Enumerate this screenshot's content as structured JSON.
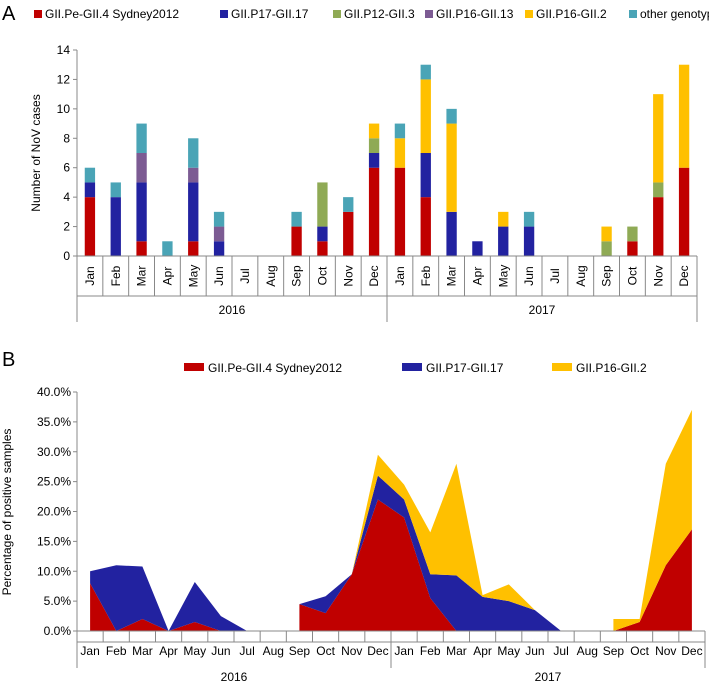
{
  "chart_data": [
    {
      "panel": "A",
      "type": "bar",
      "stacked": true,
      "ylabel": "Number of NoV cases",
      "ylim": [
        0,
        14
      ],
      "yticks": [
        0,
        2,
        4,
        6,
        8,
        10,
        12,
        14
      ],
      "categories": [
        "Jan",
        "Feb",
        "Mar",
        "Apr",
        "May",
        "Jun",
        "Jul",
        "Aug",
        "Sep",
        "Oct",
        "Nov",
        "Dec",
        "Jan",
        "Feb",
        "Mar",
        "Apr",
        "May",
        "Jun",
        "Jul",
        "Aug",
        "Sep",
        "Oct",
        "Nov",
        "Dec"
      ],
      "years": [
        "2016",
        "2017"
      ],
      "series": [
        {
          "name": "GII.Pe-GII.4 Sydney2012",
          "color": "#c00000",
          "values": [
            4,
            0,
            1,
            0,
            1,
            0,
            0,
            0,
            2,
            1,
            3,
            6,
            6,
            4,
            0,
            0,
            0,
            0,
            0,
            0,
            0,
            1,
            4,
            6
          ]
        },
        {
          "name": "GII.P17-GII.17",
          "color": "#2222a0",
          "values": [
            1,
            4,
            4,
            0,
            4,
            1,
            0,
            0,
            0,
            1,
            0,
            1,
            0,
            3,
            3,
            1,
            2,
            2,
            0,
            0,
            0,
            0,
            0,
            0
          ]
        },
        {
          "name": "GII.P12-GII.3",
          "color": "#8faa55",
          "values": [
            0,
            0,
            0,
            0,
            0,
            0,
            0,
            0,
            0,
            3,
            0,
            1,
            0,
            0,
            0,
            0,
            0,
            0,
            0,
            0,
            1,
            1,
            1,
            0
          ]
        },
        {
          "name": "GII.P16-GII.13",
          "color": "#7c5b93",
          "values": [
            0,
            0,
            2,
            0,
            1,
            1,
            0,
            0,
            0,
            0,
            0,
            0,
            0,
            0,
            0,
            0,
            0,
            0,
            0,
            0,
            0,
            0,
            0,
            0
          ]
        },
        {
          "name": "GII.P16-GII.2",
          "color": "#ffc000",
          "values": [
            0,
            0,
            0,
            0,
            0,
            0,
            0,
            0,
            0,
            0,
            0,
            1,
            2,
            5,
            6,
            0,
            1,
            0,
            0,
            0,
            1,
            0,
            6,
            7
          ]
        },
        {
          "name": "other genotype",
          "color": "#4aa4b6",
          "values": [
            1,
            1,
            2,
            1,
            2,
            1,
            0,
            0,
            1,
            0,
            1,
            0,
            1,
            1,
            1,
            0,
            0,
            1,
            0,
            0,
            0,
            0,
            0,
            0
          ]
        }
      ]
    },
    {
      "panel": "B",
      "type": "area",
      "stacked": true,
      "ylabel": "Percentage of positive samples",
      "ylim": [
        0,
        40
      ],
      "yticks": [
        "0.0%",
        "5.0%",
        "10.0%",
        "15.0%",
        "20.0%",
        "25.0%",
        "30.0%",
        "35.0%",
        "40.0%"
      ],
      "categories": [
        "Jan",
        "Feb",
        "Mar",
        "Apr",
        "May",
        "Jun",
        "Jul",
        "Aug",
        "Sep",
        "Oct",
        "Nov",
        "Dec",
        "Jan",
        "Feb",
        "Mar",
        "Apr",
        "May",
        "Jun",
        "Jul",
        "Aug",
        "Sep",
        "Oct",
        "Nov",
        "Dec"
      ],
      "years": [
        "2016",
        "2017"
      ],
      "series": [
        {
          "name": "GII.Pe-GII.4 Sydney2012",
          "color": "#c00000",
          "values": [
            8,
            0,
            2,
            0,
            1.5,
            0,
            0,
            null,
            4.5,
            3,
            9.5,
            22,
            19,
            5.5,
            0,
            0,
            0,
            0,
            0,
            null,
            0,
            1.5,
            11,
            17
          ]
        },
        {
          "name": "GII.P17-GII.17",
          "color": "#2222a0",
          "values": [
            2,
            11,
            8.8,
            0,
            6.7,
            2.5,
            0,
            null,
            0,
            2.8,
            0,
            4,
            3,
            4,
            9.3,
            5.7,
            5,
            3.5,
            0,
            null,
            0,
            0,
            0,
            0
          ]
        },
        {
          "name": "GII.P16-GII.2",
          "color": "#ffc000",
          "values": [
            0,
            0,
            0,
            0,
            0,
            0,
            0,
            null,
            0,
            0,
            0,
            3.5,
            2.5,
            7,
            18.7,
            0.3,
            2.8,
            0,
            0,
            null,
            2,
            0.5,
            17,
            20
          ]
        }
      ]
    }
  ]
}
